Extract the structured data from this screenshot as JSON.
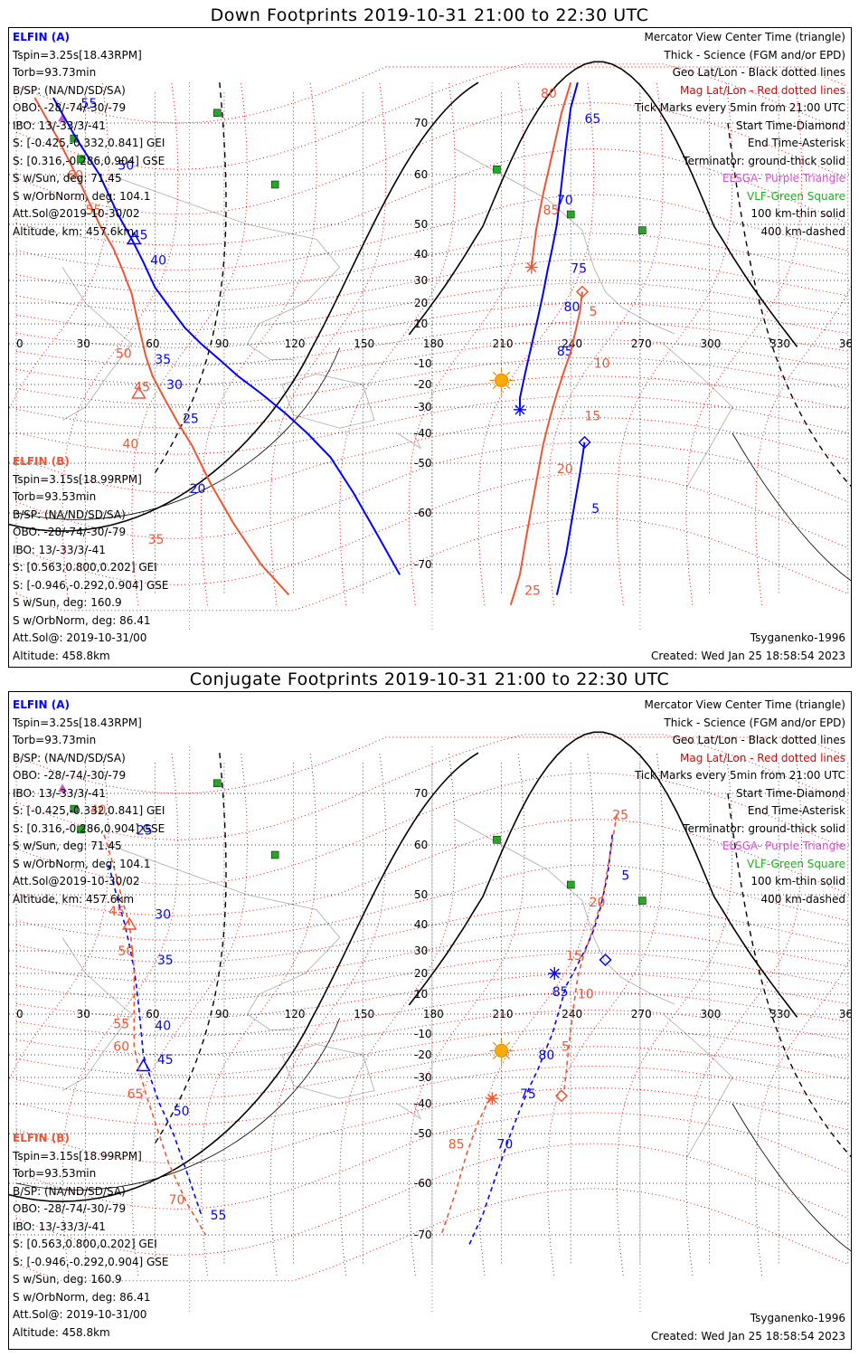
{
  "colors": {
    "sat_a": "#0000ff",
    "sat_b": "#ee5533",
    "geo_grid": "#000000",
    "mag_grid": "#dd0000",
    "elsd": "#cc55cc",
    "vlf": "#22aa22",
    "sun": "#ffaa00"
  },
  "axes": {
    "lon_ticks": [
      "0",
      "30",
      "60",
      "90",
      "120",
      "150",
      "180",
      "210",
      "240",
      "270",
      "300",
      "330",
      "360"
    ],
    "lat_ticks": [
      "70",
      "60",
      "50",
      "40",
      "30",
      "20",
      "10",
      "-10",
      "-20",
      "-30",
      "-40",
      "-50",
      "-60",
      "-70"
    ]
  },
  "legend": [
    {
      "text": "Mercator View Center Time (triangle)",
      "color": "#000000"
    },
    {
      "text": "Thick - Science (FGM and/or EPD)",
      "color": "#000000"
    },
    {
      "text": "Geo Lat/Lon - Black dotted lines",
      "color": "#000000"
    },
    {
      "text": "Mag Lat/Lon - Red dotted lines",
      "color": "#dd0000"
    },
    {
      "text": "Tick Marks every 5min from 21:00 UTC",
      "color": "#000000"
    },
    {
      "text": "Start Time-Diamond",
      "color": "#000000"
    },
    {
      "text": "End Time-Asterisk",
      "color": "#000000"
    },
    {
      "text": "Terminator: ground-thick solid",
      "color": "#000000"
    },
    {
      "text": "ELSGA- Purple Triangle",
      "color": "#cc55cc"
    },
    {
      "text": "VLF-Green Square",
      "color": "#22aa22"
    },
    {
      "text": "100 km-thin solid",
      "color": "#000000"
    },
    {
      "text": "400 km-dashed",
      "color": "#000000"
    }
  ],
  "sat_a": {
    "name": "ELFIN (A)",
    "lines": [
      "Tspin=3.25s[18.43RPM]",
      "Torb=93.73min",
      "B/SP: (NA/ND/SD/SA)",
      "OBO: -28/-74/-30/-79",
      "IBO: 13/-33/3/-41",
      "S: [-0.425,-0.332,0.841] GEI",
      "S: [0.316,-0.286,0.904] GSE",
      "S w/Sun, deg: 71.45",
      "S w/OrbNorm, deg: 104.1",
      "Att.Sol@2019-10-30/02",
      "Altitude, km: 457.6km"
    ]
  },
  "sat_b": {
    "name": "ELFIN (B)",
    "lines": [
      "Tspin=3.15s[18.99RPM]",
      "Torb=93.53min",
      "B/SP: (NA/ND/SD/SA)",
      "OBO: -28/-74/-30/-79",
      "IBO: 13/-33/3/-41",
      "S: [0.563,0.800,0.202] GEI",
      "S: [-0.946,-0.292,0.904] GSE",
      "S w/Sun, deg: 160.9",
      "S w/OrbNorm, deg: 86.41",
      "Att.Sol@: 2019-10-31/00",
      "Altitude: 458.8km"
    ]
  },
  "footer": {
    "model": "Tsyganenko-1996",
    "created": "Created: Wed Jan 25 18:58:54 2023"
  },
  "panels": [
    {
      "title": "Down Footprints 2019-10-31 21:00 to 22:30 UTC",
      "sun": {
        "lon": 210,
        "lat": -18
      },
      "a_left": {
        "points": [
          [
            16,
            75
          ],
          [
            26,
            67
          ],
          [
            36,
            60
          ],
          [
            44,
            52
          ],
          [
            50,
            45
          ],
          [
            55,
            37
          ],
          [
            60,
            27
          ],
          [
            67,
            17
          ],
          [
            73,
            8
          ],
          [
            80,
            0
          ],
          [
            88,
            -8
          ],
          [
            96,
            -16
          ],
          [
            106,
            -24
          ],
          [
            116,
            -32
          ],
          [
            126,
            -40
          ],
          [
            136,
            -48
          ],
          [
            146,
            -56
          ],
          [
            156,
            -64
          ],
          [
            166,
            -72
          ]
        ],
        "ticks": [
          {
            "label": "55",
            "lon": 28,
            "lat": 73
          },
          {
            "label": "50",
            "lon": 44,
            "lat": 61
          },
          {
            "label": "45",
            "lon": 50,
            "lat": 45
          },
          {
            "label": "40",
            "lon": 58,
            "lat": 36
          },
          {
            "label": "35",
            "lon": 60,
            "lat": -10
          },
          {
            "label": "30",
            "lon": 65,
            "lat": -22
          },
          {
            "label": "25",
            "lon": 72,
            "lat": -36
          },
          {
            "label": "20",
            "lon": 75,
            "lat": -56
          }
        ],
        "tri": {
          "lon": 51,
          "lat": 45
        }
      },
      "b_left": {
        "points": [
          [
            8,
            75
          ],
          [
            18,
            67
          ],
          [
            28,
            58
          ],
          [
            36,
            50
          ],
          [
            42,
            42
          ],
          [
            46,
            34
          ],
          [
            50,
            24
          ],
          [
            52,
            14
          ],
          [
            54,
            4
          ],
          [
            56,
            -6
          ],
          [
            59,
            -16
          ],
          [
            64,
            -26
          ],
          [
            70,
            -36
          ],
          [
            76,
            -44
          ],
          [
            84,
            -54
          ],
          [
            94,
            -62
          ],
          [
            106,
            -70
          ],
          [
            118,
            -76
          ]
        ],
        "ticks": [
          {
            "label": "60",
            "lon": 22,
            "lat": 59
          },
          {
            "label": "55",
            "lon": 30,
            "lat": 52
          },
          {
            "label": "50",
            "lon": 43,
            "lat": -7
          },
          {
            "label": "45",
            "lon": 51,
            "lat": -23
          },
          {
            "label": "40",
            "lon": 46,
            "lat": -45
          },
          {
            "label": "35",
            "lon": 57,
            "lat": -66
          }
        ],
        "tri": {
          "lon": 53,
          "lat": -24
        }
      },
      "a_right": {
        "points": [
          [
            243,
            78
          ],
          [
            240,
            73
          ],
          [
            238,
            66
          ],
          [
            236,
            58
          ],
          [
            234,
            50
          ],
          [
            232,
            42
          ],
          [
            230,
            34
          ],
          [
            228,
            24
          ],
          [
            226,
            14
          ],
          [
            224,
            4
          ],
          [
            222,
            -6
          ],
          [
            220,
            -16
          ],
          [
            218,
            -26
          ],
          [
            218,
            -30
          ]
        ],
        "ticks": [
          {
            "label": "65",
            "lon": 246,
            "lat": 70
          },
          {
            "label": "70",
            "lon": 234,
            "lat": 54
          },
          {
            "label": "75",
            "lon": 240,
            "lat": 33
          },
          {
            "label": "80",
            "lon": 237,
            "lat": 16
          },
          {
            "label": "85",
            "lon": 234,
            "lat": -6
          }
        ],
        "end": {
          "lon": 218,
          "lat": -31
        },
        "diamond": null
      },
      "b_right": {
        "points": [
          [
            240,
            78
          ],
          [
            236,
            72
          ],
          [
            232,
            64
          ],
          [
            228,
            56
          ],
          [
            225,
            48
          ],
          [
            224,
            42
          ],
          [
            223,
            35
          ]
        ],
        "ticks": [
          {
            "label": "80",
            "lon": 227,
            "lat": 75
          },
          {
            "label": "85",
            "lon": 228,
            "lat": 52
          }
        ],
        "end": {
          "lon": 223,
          "lat": 35
        },
        "diamond": null
      },
      "a_south": {
        "points": [
          [
            246,
            -43
          ],
          [
            244,
            -52
          ],
          [
            241,
            -60
          ],
          [
            238,
            -68
          ],
          [
            234,
            -76
          ]
        ],
        "ticks": [
          {
            "label": "5",
            "lon": 249,
            "lat": -60
          }
        ],
        "diamond": {
          "lon": 246,
          "lat": -43
        }
      },
      "b_south": {
        "points": [
          [
            245,
            25
          ],
          [
            244,
            16
          ],
          [
            242,
            6
          ],
          [
            240,
            -4
          ],
          [
            237,
            -14
          ],
          [
            234,
            -24
          ],
          [
            231,
            -34
          ],
          [
            228,
            -44
          ],
          [
            225,
            -54
          ],
          [
            221,
            -64
          ],
          [
            218,
            -72
          ],
          [
            214,
            -78
          ]
        ],
        "ticks": [
          {
            "label": "5",
            "lon": 248,
            "lat": 14
          },
          {
            "label": "10",
            "lon": 250,
            "lat": -12
          },
          {
            "label": "15",
            "lon": 246,
            "lat": -35
          },
          {
            "label": "20",
            "lon": 234,
            "lat": -52
          },
          {
            "label": "25",
            "lon": 220,
            "lat": -76
          }
        ],
        "diamond": {
          "lon": 245,
          "lat": 25
        }
      }
    },
    {
      "title": "Conjugate Footprints 2019-10-31 21:00 to 22:30 UTC",
      "sun": {
        "lon": 210,
        "lat": -18
      },
      "a_left": {
        "points": [
          [
            40,
            56
          ],
          [
            44,
            48
          ],
          [
            47,
            40
          ],
          [
            49,
            32
          ],
          [
            51,
            22
          ],
          [
            52,
            14
          ],
          [
            53,
            4
          ],
          [
            54,
            -8
          ],
          [
            55,
            -20
          ],
          [
            58,
            -30
          ],
          [
            62,
            -40
          ],
          [
            68,
            -50
          ],
          [
            74,
            -58
          ],
          [
            80,
            -66
          ]
        ],
        "ticks": [
          {
            "label": "25",
            "lon": 52,
            "lat": 62
          },
          {
            "label": "30",
            "lon": 60,
            "lat": 42
          },
          {
            "label": "35",
            "lon": 61,
            "lat": 24
          },
          {
            "label": "40",
            "lon": 60,
            "lat": -8
          },
          {
            "label": "45",
            "lon": 61,
            "lat": -24
          },
          {
            "label": "50",
            "lon": 68,
            "lat": -44
          },
          {
            "label": "55",
            "lon": 84,
            "lat": -67
          }
        ],
        "tri": {
          "lon": 55,
          "lat": -25
        }
      },
      "b_left": {
        "points": [
          [
            38,
            62
          ],
          [
            42,
            56
          ],
          [
            46,
            48
          ],
          [
            49,
            40
          ],
          [
            50,
            32
          ],
          [
            51,
            22
          ],
          [
            51,
            14
          ],
          [
            51,
            4
          ],
          [
            51,
            -6
          ],
          [
            51,
            -16
          ],
          [
            53,
            -26
          ],
          [
            56,
            -36
          ],
          [
            60,
            -46
          ],
          [
            66,
            -56
          ],
          [
            74,
            -64
          ],
          [
            82,
            -70
          ]
        ],
        "ticks": [
          {
            "label": "40",
            "lon": 32,
            "lat": 66
          },
          {
            "label": "45",
            "lon": 40,
            "lat": 43
          },
          {
            "label": "50",
            "lon": 44,
            "lat": 28
          },
          {
            "label": "55",
            "lon": 42,
            "lat": -7
          },
          {
            "label": "60",
            "lon": 42,
            "lat": -18
          },
          {
            "label": "65",
            "lon": 48,
            "lat": -38
          },
          {
            "label": "70",
            "lon": 66,
            "lat": -64
          }
        ],
        "tri": {
          "lon": 49,
          "lat": 40
        }
      },
      "a_right": {
        "points": [
          [
            258,
            62
          ],
          [
            256,
            54
          ],
          [
            253,
            46
          ],
          [
            250,
            38
          ],
          [
            246,
            30
          ],
          [
            242,
            22
          ],
          [
            238,
            14
          ],
          [
            236,
            6
          ],
          [
            234,
            -2
          ],
          [
            232,
            -10
          ],
          [
            229,
            -18
          ],
          [
            226,
            -26
          ],
          [
            222,
            -34
          ],
          [
            218,
            -42
          ],
          [
            214,
            -50
          ],
          [
            208,
            -58
          ],
          [
            202,
            -66
          ],
          [
            196,
            -72
          ]
        ],
        "ticks": [
          {
            "label": "5",
            "lon": 262,
            "lat": 53
          },
          {
            "label": "85",
            "lon": 232,
            "lat": 9
          },
          {
            "label": "80",
            "lon": 226,
            "lat": -22
          },
          {
            "label": "75",
            "lon": 218,
            "lat": -38
          },
          {
            "label": "70",
            "lon": 208,
            "lat": -53
          }
        ],
        "end": {
          "lon": 233,
          "lat": 20
        },
        "diamond": {
          "lon": 255,
          "lat": 26
        }
      },
      "b_right": {
        "points": [
          [
            260,
            66
          ],
          [
            257,
            58
          ],
          [
            254,
            50
          ],
          [
            251,
            42
          ],
          [
            248,
            34
          ],
          [
            245,
            26
          ],
          [
            243,
            18
          ],
          [
            242,
            10
          ],
          [
            241,
            2
          ],
          [
            240,
            -8
          ],
          [
            239,
            -18
          ],
          [
            238,
            -28
          ],
          [
            237,
            -36
          ]
        ],
        "ticks": [
          {
            "label": "25",
            "lon": 258,
            "lat": 65
          },
          {
            "label": "20",
            "lon": 248,
            "lat": 46
          },
          {
            "label": "15",
            "lon": 238,
            "lat": 26
          },
          {
            "label": "10",
            "lon": 243,
            "lat": 8
          },
          {
            "label": "5",
            "lon": 236,
            "lat": -18
          }
        ],
        "end": null,
        "diamond": {
          "lon": 236,
          "lat": -37
        }
      },
      "b_sw": {
        "points": [
          [
            205,
            -38
          ],
          [
            200,
            -46
          ],
          [
            195,
            -54
          ],
          [
            190,
            -62
          ],
          [
            184,
            -70
          ]
        ],
        "ticks": [
          {
            "label": "85",
            "lon": 187,
            "lat": -53
          }
        ],
        "end": {
          "lon": 206,
          "lat": -38
        }
      }
    }
  ]
}
